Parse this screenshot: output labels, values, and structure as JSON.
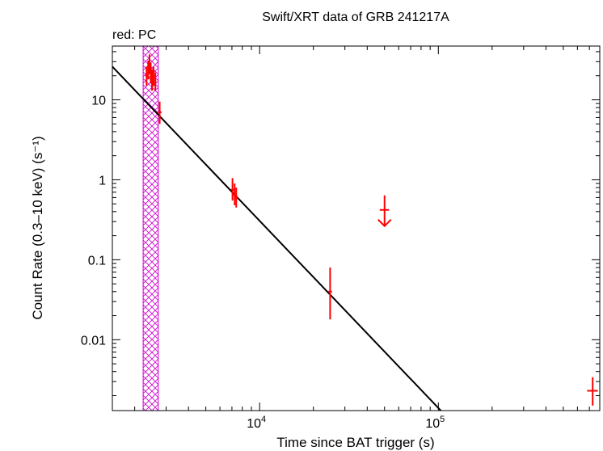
{
  "chart_data": {
    "type": "scatter",
    "title": "Swift/XRT data of GRB 241217A",
    "subtitle": "red: PC",
    "xlabel": "Time since BAT trigger (s)",
    "ylabel": "Count Rate (0.3–10 keV) (s⁻¹)",
    "x_scale": "log",
    "y_scale": "log",
    "xlim": [
      1500,
      800000
    ],
    "ylim": [
      0.0013,
      47
    ],
    "x_tick_labels": [
      {
        "value": 10000,
        "base": "10",
        "exp": "4"
      },
      {
        "value": 100000,
        "base": "10",
        "exp": "5"
      }
    ],
    "y_tick_labels": [
      {
        "value": 10,
        "label": "10"
      },
      {
        "value": 1,
        "label": "1"
      },
      {
        "value": 0.1,
        "label": "0.1"
      },
      {
        "value": 0.01,
        "label": "0.01"
      }
    ],
    "series": [
      {
        "color": "#ff0000",
        "points": [
          {
            "x": 2330,
            "y": 20,
            "xlo": 2290,
            "xhi": 2370,
            "ylo": 15,
            "yhi": 26
          },
          {
            "x": 2380,
            "y": 24,
            "xlo": 2340,
            "xhi": 2420,
            "ylo": 18,
            "yhi": 31
          },
          {
            "x": 2420,
            "y": 28,
            "xlo": 2390,
            "xhi": 2450,
            "ylo": 21,
            "yhi": 37
          },
          {
            "x": 2460,
            "y": 22,
            "xlo": 2430,
            "xhi": 2490,
            "ylo": 16,
            "yhi": 29
          },
          {
            "x": 2500,
            "y": 18,
            "xlo": 2470,
            "xhi": 2530,
            "ylo": 13,
            "yhi": 24
          },
          {
            "x": 2550,
            "y": 20,
            "xlo": 2520,
            "xhi": 2580,
            "ylo": 15,
            "yhi": 26
          },
          {
            "x": 2610,
            "y": 17,
            "xlo": 2580,
            "xhi": 2640,
            "ylo": 13,
            "yhi": 22
          },
          {
            "x": 2760,
            "y": 7,
            "xlo": 2700,
            "xhi": 2830,
            "ylo": 5,
            "yhi": 9.5
          },
          {
            "x": 7050,
            "y": 0.75,
            "xlo": 6900,
            "xhi": 7200,
            "ylo": 0.55,
            "yhi": 1.05
          },
          {
            "x": 7250,
            "y": 0.65,
            "xlo": 7100,
            "xhi": 7400,
            "ylo": 0.48,
            "yhi": 0.9
          },
          {
            "x": 7400,
            "y": 0.6,
            "xlo": 7250,
            "xhi": 7600,
            "ylo": 0.45,
            "yhi": 0.8
          },
          {
            "x": 24800,
            "y": 0.04,
            "xlo": 24200,
            "xhi": 25400,
            "ylo": 0.018,
            "yhi": 0.08
          },
          {
            "x": 730000,
            "y": 0.0023,
            "xlo": 680000,
            "xhi": 780000,
            "ylo": 0.0015,
            "yhi": 0.0034
          }
        ],
        "upper_limits": [
          {
            "x": 50000,
            "y": 0.42,
            "xlo": 47000,
            "xhi": 53000
          }
        ]
      }
    ],
    "fit_line": {
      "color": "#000000",
      "x1": 1500,
      "y1": 26,
      "x2": 105000,
      "y2": 0.00125
    },
    "shaded_band": {
      "color": "#cc00cc",
      "pattern": "crosshatch",
      "x_from": 2230,
      "x_to": 2710
    }
  }
}
